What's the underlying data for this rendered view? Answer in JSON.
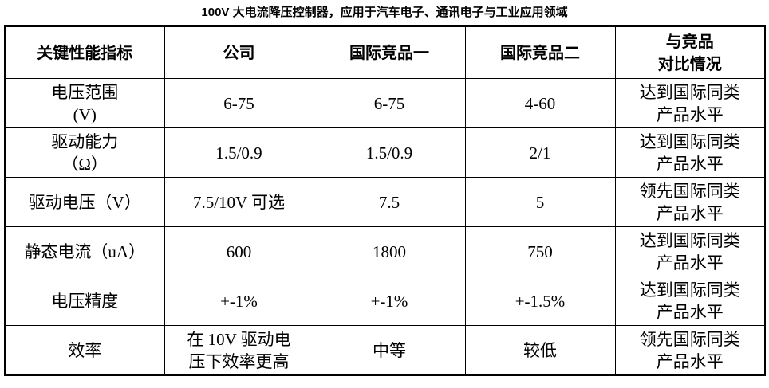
{
  "header": {
    "title": "100V 大电流降压控制器，应用于汽车电子、通讯电子与工业应用领域"
  },
  "table": {
    "columns": [
      "关键性能指标",
      "公司",
      "国际竞品一",
      "国际竞品二",
      "与竞品\n对比情况"
    ],
    "rows": [
      [
        "电压范围\n(V)",
        "6-75",
        "6-75",
        "4-60",
        "达到国际同类\n产品水平"
      ],
      [
        "驱动能力\n（Ω）",
        "1.5/0.9",
        "1.5/0.9",
        "2/1",
        "达到国际同类\n产品水平"
      ],
      [
        "驱动电压（V）",
        "7.5/10V 可选",
        "7.5",
        "5",
        "领先国际同类\n产品水平"
      ],
      [
        "静态电流（uA）",
        "600",
        "1800",
        "750",
        "达到国际同类\n产品水平"
      ],
      [
        "电压精度",
        "+-1%",
        "+-1%",
        "+-1.5%",
        "达到国际同类\n产品水平"
      ],
      [
        "效率",
        "在 10V 驱动电\n压下效率更高",
        "中等",
        "较低",
        "领先国际同类\n产品水平"
      ]
    ]
  }
}
